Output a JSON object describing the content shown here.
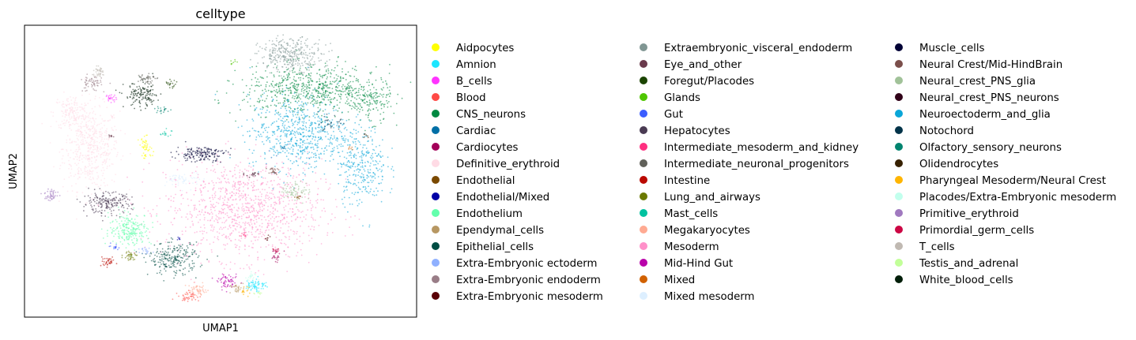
{
  "chart_data": {
    "type": "scatter",
    "title": "celltype",
    "xlabel": "UMAP1",
    "ylabel": "UMAP2",
    "legend_position": "right",
    "legend_columns": 3,
    "ticks": "none",
    "categories": [
      {
        "name": "Aidpocytes",
        "color": "#ffff00"
      },
      {
        "name": "Amnion",
        "color": "#1ce6ff"
      },
      {
        "name": "B_cells",
        "color": "#ff34ff"
      },
      {
        "name": "Blood",
        "color": "#ff4a46"
      },
      {
        "name": "CNS_neurons",
        "color": "#008941"
      },
      {
        "name": "Cardiac",
        "color": "#006fa6"
      },
      {
        "name": "Cardiocytes",
        "color": "#a30059"
      },
      {
        "name": "Definitive_erythroid",
        "color": "#ffdbe5"
      },
      {
        "name": "Endothelial",
        "color": "#7a4900"
      },
      {
        "name": "Endothelial/Mixed",
        "color": "#0000a6"
      },
      {
        "name": "Endothelium",
        "color": "#63ffac"
      },
      {
        "name": "Ependymal_cells",
        "color": "#b79762"
      },
      {
        "name": "Epithelial_cells",
        "color": "#004d43"
      },
      {
        "name": "Extra-Embryonic ectoderm",
        "color": "#8fb0ff"
      },
      {
        "name": "Extra-Embryonic endoderm",
        "color": "#997d87"
      },
      {
        "name": "Extra-Embryonic mesoderm",
        "color": "#5a0007"
      },
      {
        "name": "Extraembryonic_visceral_endoderm",
        "color": "#809693"
      },
      {
        "name": "Eye_and_other",
        "color": "#6a3a4c"
      },
      {
        "name": "Foregut/Placodes",
        "color": "#1b4400"
      },
      {
        "name": "Glands",
        "color": "#4fc601"
      },
      {
        "name": "Gut",
        "color": "#3b5dff"
      },
      {
        "name": "Hepatocytes",
        "color": "#4a3b53"
      },
      {
        "name": "Intermediate_mesoderm_and_kidney",
        "color": "#ff2f80"
      },
      {
        "name": "Intermediate_neuronal_progenitors",
        "color": "#61615a"
      },
      {
        "name": "Intestine",
        "color": "#ba0900"
      },
      {
        "name": "Lung_and_airways",
        "color": "#6b7900"
      },
      {
        "name": "Mast_cells",
        "color": "#00c2a0"
      },
      {
        "name": "Megakaryocytes",
        "color": "#ffaa92"
      },
      {
        "name": "Mesoderm",
        "color": "#ff90c9"
      },
      {
        "name": "Mid-Hind Gut",
        "color": "#b903aa"
      },
      {
        "name": "Mixed",
        "color": "#d16100"
      },
      {
        "name": "Mixed mesoderm",
        "color": "#ddefff"
      },
      {
        "name": "Muscle_cells",
        "color": "#000035"
      },
      {
        "name": "Neural Crest/Mid-HindBrain",
        "color": "#7b4f4b"
      },
      {
        "name": "Neural_crest_PNS_glia",
        "color": "#a1c299"
      },
      {
        "name": "Neural_crest_PNS_neurons",
        "color": "#300018"
      },
      {
        "name": "Neuroectoderm_and_glia",
        "color": "#0aa6d8"
      },
      {
        "name": "Notochord",
        "color": "#013349"
      },
      {
        "name": "Olfactory_sensory_neurons",
        "color": "#00846f"
      },
      {
        "name": "Olidendrocytes",
        "color": "#372101"
      },
      {
        "name": "Pharyngeal Mesoderm/Neural Crest",
        "color": "#ffb500"
      },
      {
        "name": "Placodes/Extra-Embryonic mesoderm",
        "color": "#c2ffed"
      },
      {
        "name": "Primitive_erythroid",
        "color": "#a079bf"
      },
      {
        "name": "Primordial_germ_cells",
        "color": "#cc0744"
      },
      {
        "name": "T_cells",
        "color": "#c0b9b2"
      },
      {
        "name": "Testis_and_adrenal",
        "color": "#c2ff99"
      },
      {
        "name": "White_blood_cells",
        "color": "#001e09"
      }
    ],
    "clusters": [
      {
        "category": "Definitive_erythroid",
        "x": 0.17,
        "y": 0.58,
        "rx": 0.08,
        "ry": 0.16,
        "n": 520
      },
      {
        "category": "Definitive_erythroid",
        "x": 0.12,
        "y": 0.7,
        "rx": 0.05,
        "ry": 0.07,
        "n": 150
      },
      {
        "category": "Mesoderm",
        "x": 0.56,
        "y": 0.37,
        "rx": 0.22,
        "ry": 0.19,
        "n": 1100
      },
      {
        "category": "Neuroectoderm_and_glia",
        "x": 0.7,
        "y": 0.63,
        "rx": 0.14,
        "ry": 0.14,
        "n": 650
      },
      {
        "category": "Neuroectoderm_and_glia",
        "x": 0.86,
        "y": 0.52,
        "rx": 0.07,
        "ry": 0.15,
        "n": 300
      },
      {
        "category": "CNS_neurons",
        "x": 0.73,
        "y": 0.78,
        "rx": 0.19,
        "ry": 0.09,
        "n": 650
      },
      {
        "category": "CNS_neurons",
        "x": 0.88,
        "y": 0.74,
        "rx": 0.06,
        "ry": 0.08,
        "n": 160
      },
      {
        "category": "Extraembryonic_visceral_endoderm",
        "x": 0.68,
        "y": 0.9,
        "rx": 0.09,
        "ry": 0.06,
        "n": 320
      },
      {
        "category": "Neural_crest_PNS_glia",
        "x": 0.69,
        "y": 0.43,
        "rx": 0.04,
        "ry": 0.04,
        "n": 70
      },
      {
        "category": "Muscle_cells",
        "x": 0.45,
        "y": 0.56,
        "rx": 0.07,
        "ry": 0.03,
        "n": 160
      },
      {
        "category": "Hepatocytes",
        "x": 0.21,
        "y": 0.39,
        "rx": 0.07,
        "ry": 0.04,
        "n": 200
      },
      {
        "category": "Endothelium",
        "x": 0.27,
        "y": 0.3,
        "rx": 0.06,
        "ry": 0.06,
        "n": 230
      },
      {
        "category": "Epithelial_cells",
        "x": 0.38,
        "y": 0.2,
        "rx": 0.07,
        "ry": 0.06,
        "n": 240
      },
      {
        "category": "White_blood_cells",
        "x": 0.3,
        "y": 0.76,
        "rx": 0.05,
        "ry": 0.05,
        "n": 140
      },
      {
        "category": "Extra-Embryonic endoderm",
        "x": 0.17,
        "y": 0.8,
        "rx": 0.03,
        "ry": 0.03,
        "n": 60
      },
      {
        "category": "Aidpocytes",
        "x": 0.31,
        "y": 0.58,
        "rx": 0.02,
        "ry": 0.04,
        "n": 50
      },
      {
        "category": "B_cells",
        "x": 0.22,
        "y": 0.75,
        "rx": 0.015,
        "ry": 0.015,
        "n": 25
      },
      {
        "category": "Primitive_erythroid",
        "x": 0.07,
        "y": 0.42,
        "rx": 0.02,
        "ry": 0.025,
        "n": 45
      },
      {
        "category": "Amnion",
        "x": 0.59,
        "y": 0.11,
        "rx": 0.03,
        "ry": 0.025,
        "n": 70
      },
      {
        "category": "Mid-Hind Gut",
        "x": 0.52,
        "y": 0.12,
        "rx": 0.03,
        "ry": 0.025,
        "n": 60
      },
      {
        "category": "Megakaryocytes",
        "x": 0.44,
        "y": 0.09,
        "rx": 0.035,
        "ry": 0.025,
        "n": 60
      },
      {
        "category": "Blood",
        "x": 0.42,
        "y": 0.07,
        "rx": 0.03,
        "ry": 0.02,
        "n": 40
      },
      {
        "category": "Ependymal_cells",
        "x": 0.54,
        "y": 0.1,
        "rx": 0.02,
        "ry": 0.02,
        "n": 30
      },
      {
        "category": "Intestine",
        "x": 0.21,
        "y": 0.19,
        "rx": 0.025,
        "ry": 0.015,
        "n": 35
      },
      {
        "category": "Lung_and_airways",
        "x": 0.27,
        "y": 0.21,
        "rx": 0.02,
        "ry": 0.02,
        "n": 35
      },
      {
        "category": "Extra-Embryonic ectoderm",
        "x": 0.31,
        "y": 0.23,
        "rx": 0.015,
        "ry": 0.015,
        "n": 20
      },
      {
        "category": "Intermediate_neuronal_progenitors",
        "x": 0.31,
        "y": 0.82,
        "rx": 0.025,
        "ry": 0.02,
        "n": 40
      },
      {
        "category": "Cardiocytes",
        "x": 0.64,
        "y": 0.21,
        "rx": 0.015,
        "ry": 0.03,
        "n": 25
      },
      {
        "category": "Olfactory_sensory_neurons",
        "x": 0.35,
        "y": 0.71,
        "rx": 0.02,
        "ry": 0.015,
        "n": 20
      },
      {
        "category": "Neural Crest/Mid-HindBrain",
        "x": 0.63,
        "y": 0.5,
        "rx": 0.02,
        "ry": 0.02,
        "n": 25
      },
      {
        "category": "T_cells",
        "x": 0.19,
        "y": 0.84,
        "rx": 0.02,
        "ry": 0.02,
        "n": 40
      },
      {
        "category": "Mixed mesoderm",
        "x": 0.41,
        "y": 0.47,
        "rx": 0.05,
        "ry": 0.03,
        "n": 60
      },
      {
        "category": "Gut",
        "x": 0.23,
        "y": 0.24,
        "rx": 0.015,
        "ry": 0.01,
        "n": 15
      },
      {
        "category": "Notochord",
        "x": 0.78,
        "y": 0.66,
        "rx": 0.03,
        "ry": 0.03,
        "n": 30
      },
      {
        "category": "Mast_cells",
        "x": 0.36,
        "y": 0.63,
        "rx": 0.015,
        "ry": 0.015,
        "n": 15
      },
      {
        "category": "Pharyngeal Mesoderm/Neural Crest",
        "x": 0.56,
        "y": 0.09,
        "rx": 0.015,
        "ry": 0.015,
        "n": 15
      },
      {
        "category": "Placodes/Extra-Embryonic mesoderm",
        "x": 0.58,
        "y": 0.14,
        "rx": 0.02,
        "ry": 0.015,
        "n": 20
      },
      {
        "category": "Primordial_germ_cells",
        "x": 0.64,
        "y": 0.23,
        "rx": 0.01,
        "ry": 0.01,
        "n": 10
      },
      {
        "category": "Extra-Embryonic mesoderm",
        "x": 0.62,
        "y": 0.27,
        "rx": 0.01,
        "ry": 0.01,
        "n": 8
      },
      {
        "category": "Neural_crest_PNS_neurons",
        "x": 0.58,
        "y": 0.49,
        "rx": 0.02,
        "ry": 0.01,
        "n": 15
      },
      {
        "category": "Testis_and_adrenal",
        "x": 0.6,
        "y": 0.08,
        "rx": 0.015,
        "ry": 0.01,
        "n": 10
      },
      {
        "category": "Eye_and_other",
        "x": 0.22,
        "y": 0.62,
        "rx": 0.01,
        "ry": 0.01,
        "n": 8
      },
      {
        "category": "Glands",
        "x": 0.53,
        "y": 0.87,
        "rx": 0.01,
        "ry": 0.01,
        "n": 8
      },
      {
        "category": "Cardiac",
        "x": 0.66,
        "y": 0.58,
        "rx": 0.01,
        "ry": 0.01,
        "n": 8
      },
      {
        "category": "Endothelial",
        "x": 0.7,
        "y": 0.41,
        "rx": 0.01,
        "ry": 0.01,
        "n": 8
      },
      {
        "category": "Endothelial/Mixed",
        "x": 0.39,
        "y": 0.27,
        "rx": 0.01,
        "ry": 0.01,
        "n": 6
      },
      {
        "category": "Mixed",
        "x": 0.83,
        "y": 0.58,
        "rx": 0.01,
        "ry": 0.01,
        "n": 6
      },
      {
        "category": "Olidendrocytes",
        "x": 0.87,
        "y": 0.62,
        "rx": 0.01,
        "ry": 0.01,
        "n": 6
      },
      {
        "category": "Foregut/Placodes",
        "x": 0.37,
        "y": 0.8,
        "rx": 0.02,
        "ry": 0.015,
        "n": 20
      },
      {
        "category": "Intermediate_mesoderm_and_kidney",
        "x": 0.56,
        "y": 0.28,
        "rx": 0.015,
        "ry": 0.01,
        "n": 10
      }
    ]
  }
}
